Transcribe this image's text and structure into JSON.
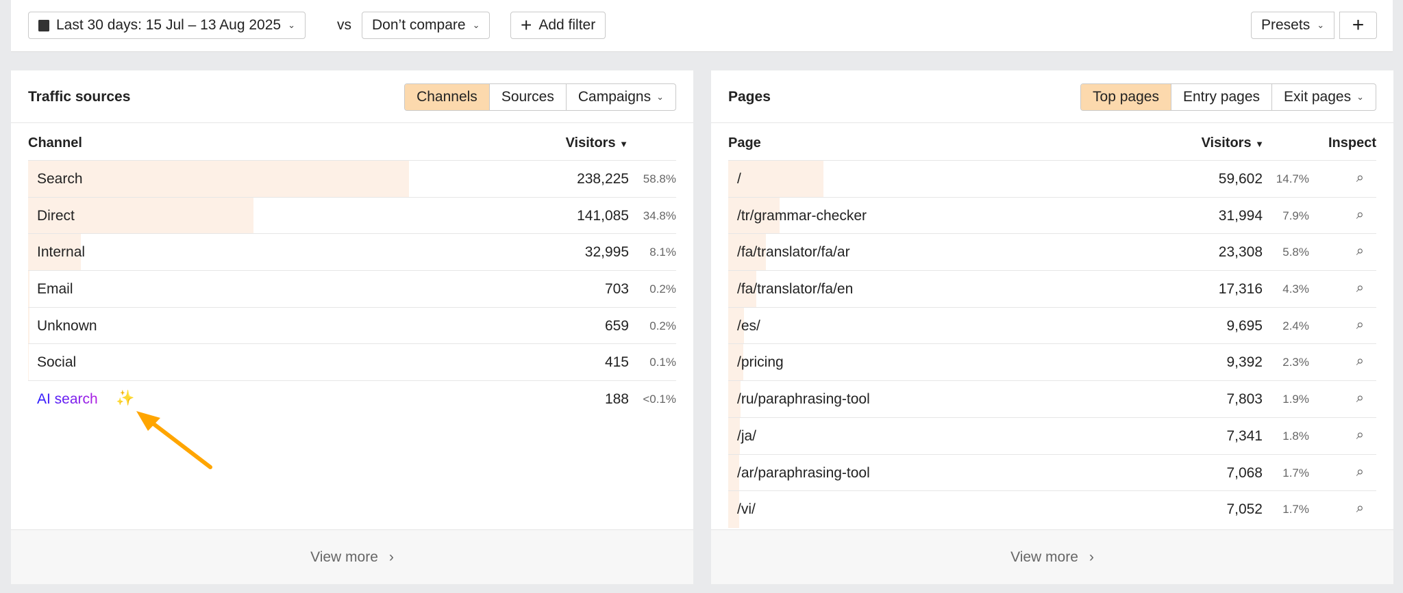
{
  "toolbar": {
    "date_range": "Last 30 days: 15 Jul – 13 Aug 2025",
    "vs": "vs",
    "compare": "Don’t compare",
    "add_filter": "Add filter",
    "presets": "Presets",
    "add": "+"
  },
  "traffic": {
    "title": "Traffic sources",
    "tabs": [
      "Channels",
      "Sources",
      "Campaigns"
    ],
    "active_tab": "Channels",
    "col_channel": "Channel",
    "col_visitors": "Visitors",
    "view_more": "View more",
    "rows": [
      {
        "label": "Search",
        "visitors": "238,225",
        "pct": "58.8%",
        "share": 58.8
      },
      {
        "label": "Direct",
        "visitors": "141,085",
        "pct": "34.8%",
        "share": 34.8
      },
      {
        "label": "Internal",
        "visitors": "32,995",
        "pct": "8.1%",
        "share": 8.1
      },
      {
        "label": "Email",
        "visitors": "703",
        "pct": "0.2%",
        "share": 0.2
      },
      {
        "label": "Unknown",
        "visitors": "659",
        "pct": "0.2%",
        "share": 0.2
      },
      {
        "label": "Social",
        "visitors": "415",
        "pct": "0.1%",
        "share": 0.1
      },
      {
        "label": "AI search",
        "visitors": "188",
        "pct": "<0.1%",
        "share": 0.05
      }
    ]
  },
  "pages": {
    "title": "Pages",
    "tabs": [
      "Top pages",
      "Entry pages",
      "Exit pages"
    ],
    "active_tab": "Top pages",
    "col_page": "Page",
    "col_visitors": "Visitors",
    "col_inspect": "Inspect",
    "view_more": "View more",
    "rows": [
      {
        "label": "/",
        "visitors": "59,602",
        "pct": "14.7%",
        "share": 14.7
      },
      {
        "label": "/tr/grammar-checker",
        "visitors": "31,994",
        "pct": "7.9%",
        "share": 7.9
      },
      {
        "label": "/fa/translator/fa/ar",
        "visitors": "23,308",
        "pct": "5.8%",
        "share": 5.8
      },
      {
        "label": "/fa/translator/fa/en",
        "visitors": "17,316",
        "pct": "4.3%",
        "share": 4.3
      },
      {
        "label": "/es/",
        "visitors": "9,695",
        "pct": "2.4%",
        "share": 2.4
      },
      {
        "label": "/pricing",
        "visitors": "9,392",
        "pct": "2.3%",
        "share": 2.3
      },
      {
        "label": "/ru/paraphrasing-tool",
        "visitors": "7,803",
        "pct": "1.9%",
        "share": 1.9
      },
      {
        "label": "/ja/",
        "visitors": "7,341",
        "pct": "1.8%",
        "share": 1.8
      },
      {
        "label": "/ar/paraphrasing-tool",
        "visitors": "7,068",
        "pct": "1.7%",
        "share": 1.7
      },
      {
        "label": "/vi/",
        "visitors": "7,052",
        "pct": "1.7%",
        "share": 1.7
      }
    ]
  },
  "colors": {
    "active_tab": "#fcd9ad",
    "bar": "#fdf0e6",
    "annotation_arrow": "#ffa500",
    "ai_sparkle": "#e020d0"
  }
}
